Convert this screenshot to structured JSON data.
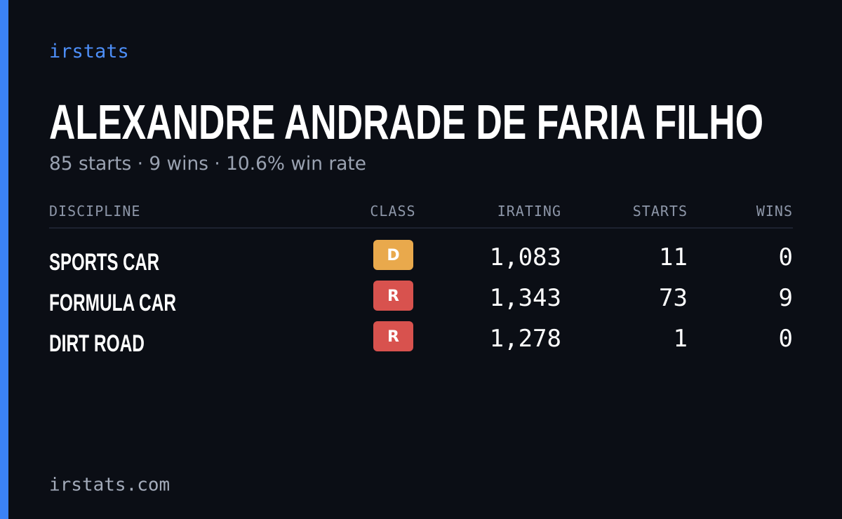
{
  "brand": "irstats",
  "title": "ALEXANDRE ANDRADE DE FARIA FILHO",
  "summary": "85 starts · 9 wins · 10.6% win rate",
  "table": {
    "headers": [
      "DISCIPLINE",
      "CLASS",
      "IRATING",
      "STARTS",
      "WINS"
    ],
    "rows": [
      {
        "discipline": "SPORTS CAR",
        "class": "D",
        "class_color": "#e9a94c",
        "irating": "1,083",
        "starts": "11",
        "wins": "0"
      },
      {
        "discipline": "FORMULA CAR",
        "class": "R",
        "class_color": "#d8524e",
        "irating": "1,343",
        "starts": "73",
        "wins": "9"
      },
      {
        "discipline": "DIRT ROAD",
        "class": "R",
        "class_color": "#d8524e",
        "irating": "1,278",
        "starts": "1",
        "wins": "0"
      }
    ]
  },
  "footer": "irstats.com"
}
